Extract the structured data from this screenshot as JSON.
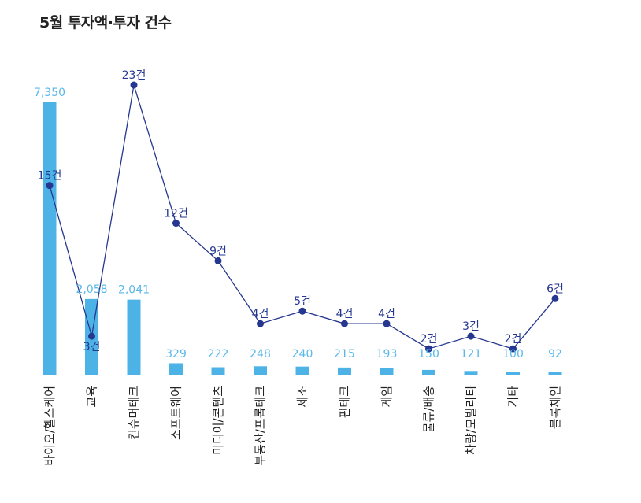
{
  "chart_data": {
    "type": "bar",
    "title": "5월 투자액·투자 건수",
    "categories": [
      "바이오/헬스케어",
      "교육",
      "컨슈머테크",
      "소프트웨어",
      "미디어/콘텐츠",
      "부동산/프롭테크",
      "제조",
      "핀테크",
      "게임",
      "물류/배송",
      "차량/모빌리티",
      "기타",
      "블록체인"
    ],
    "series": [
      {
        "type": "bar",
        "values": [
          7350,
          2058,
          2041,
          329,
          222,
          248,
          240,
          215,
          193,
          150,
          121,
          100,
          92
        ],
        "labels": [
          "7,350",
          "2,058",
          "2,041",
          "329",
          "222",
          "248",
          "240",
          "215",
          "193",
          "150",
          "121",
          "100",
          "92"
        ],
        "color": "#4db3e6",
        "label_color": "#5ab8e8"
      },
      {
        "type": "line",
        "values": [
          15,
          3,
          23,
          12,
          9,
          4,
          5,
          4,
          4,
          2,
          3,
          2,
          6
        ],
        "labels": [
          "15건",
          "3건",
          "23건",
          "12건",
          "9건",
          "4건",
          "5건",
          "4건",
          "4건",
          "2건",
          "3건",
          "2건",
          "6건"
        ],
        "color": "#25378f"
      }
    ],
    "bar_ylim": [
      0,
      7350
    ],
    "line_ylim": [
      0,
      23
    ],
    "grid": false,
    "legend": "none"
  }
}
